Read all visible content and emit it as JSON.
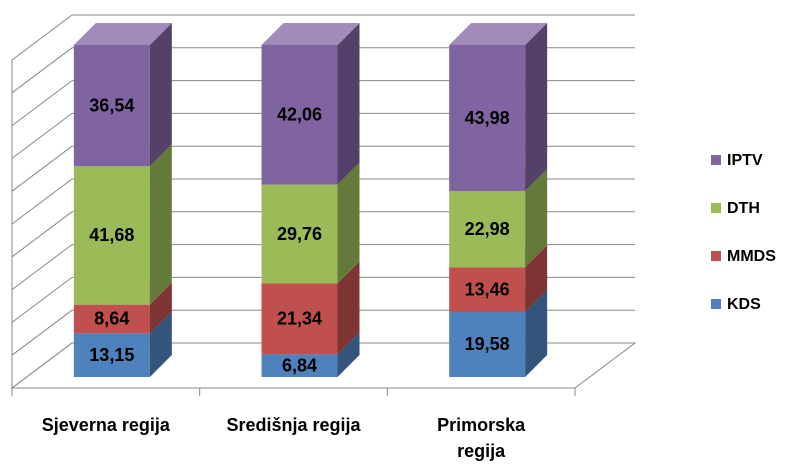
{
  "chart_data": {
    "type": "bar",
    "stacked": true,
    "categories": [
      "Sjeverna regija",
      "Središnja regija",
      "Primorska regija"
    ],
    "series": [
      {
        "name": "KDS",
        "color": "#4f81bd",
        "values": [
          13.15,
          6.84,
          19.58
        ],
        "value_labels": [
          "13,15",
          "6,84",
          "19,58"
        ]
      },
      {
        "name": "MMDS",
        "color": "#c0504d",
        "values": [
          8.64,
          21.34,
          13.46
        ],
        "value_labels": [
          "8,64",
          "21,34",
          "13,46"
        ]
      },
      {
        "name": "DTH",
        "color": "#9bbb59",
        "values": [
          41.68,
          29.76,
          22.98
        ],
        "value_labels": [
          "41,68",
          "29,76",
          "22,98"
        ]
      },
      {
        "name": "IPTV",
        "color": "#8064a2",
        "values": [
          36.54,
          42.06,
          43.98
        ],
        "value_labels": [
          "36,54",
          "42,06",
          "43,98"
        ]
      }
    ],
    "ylim": [
      0,
      100
    ],
    "yticks": [
      0,
      10,
      20,
      30,
      40,
      50,
      60,
      70,
      80,
      90,
      100
    ],
    "grid": true,
    "legend": "right"
  }
}
